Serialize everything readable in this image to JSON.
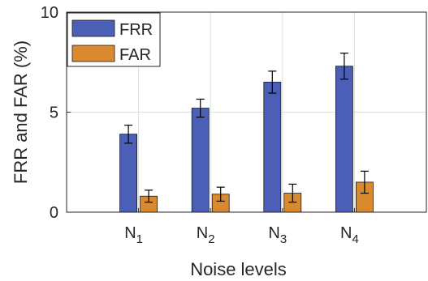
{
  "chart_data": {
    "type": "bar",
    "title": "",
    "xlabel": "Noise levels",
    "ylabel": "FRR and FAR (%)",
    "ylim": [
      0,
      10
    ],
    "yticks": [
      0,
      5,
      10
    ],
    "categories": [
      {
        "base": "N",
        "sub": "1"
      },
      {
        "base": "N",
        "sub": "2"
      },
      {
        "base": "N",
        "sub": "3"
      },
      {
        "base": "N",
        "sub": "4"
      }
    ],
    "series": [
      {
        "name": "FRR",
        "color": "#4a5fb5",
        "values": [
          3.9,
          5.2,
          6.5,
          7.3
        ],
        "errors": [
          0.45,
          0.45,
          0.55,
          0.65
        ]
      },
      {
        "name": "FAR",
        "color": "#d98a2e",
        "values": [
          0.8,
          0.9,
          0.95,
          1.5
        ],
        "errors": [
          0.3,
          0.35,
          0.45,
          0.55
        ]
      }
    ],
    "grid": true,
    "legend_position": "top-left"
  }
}
